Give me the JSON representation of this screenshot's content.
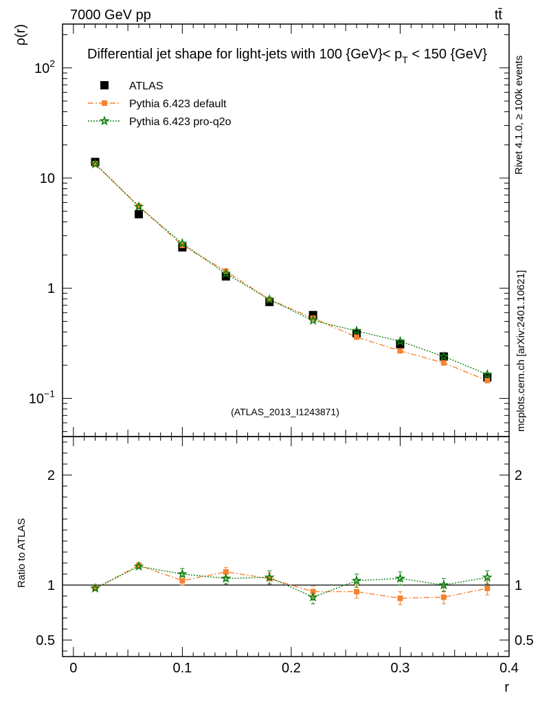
{
  "header": {
    "energy_label": "7000 GeV pp",
    "process_label": "tt̄",
    "plot_title": "Differential jet shape for light-jets with 100 {GeV}< p_T < 150 {GeV}",
    "title_prefix": "Differential jet shape for light-jets with 100 {GeV}< p",
    "title_subscript": "T",
    "title_suffix": " < 150 {GeV}"
  },
  "side_labels": {
    "rivet": "Rivet 4.1.0, ≥ 100k events",
    "mcplots": "mcplots.cern.ch [arXiv:2401.10621]"
  },
  "analysis_label": "(ATLAS_2013_I1243871)",
  "colors": {
    "atlas": "#000000",
    "pythia_default": "#f58231",
    "pythia_proq2o": "#0a7d0a"
  },
  "chart_data": [
    {
      "type": "scatter",
      "panel": "main",
      "ylabel": "ρ(r)",
      "yscale": "log",
      "ylim": [
        0.045,
        250
      ],
      "xlim": [
        -0.01,
        0.4
      ],
      "y_ticks": [
        {
          "value": 0.1,
          "base": "10",
          "exp": "−1"
        },
        {
          "value": 1,
          "label": "1"
        },
        {
          "value": 10,
          "label": "10"
        },
        {
          "value": 100,
          "base": "10",
          "exp": "2"
        }
      ],
      "x": [
        0.02,
        0.06,
        0.1,
        0.14,
        0.18,
        0.22,
        0.26,
        0.3,
        0.34,
        0.38
      ],
      "series": [
        {
          "name": "ATLAS",
          "key": "atlas",
          "style": "square",
          "values": [
            14.0,
            4.7,
            2.35,
            1.28,
            0.75,
            0.57,
            0.39,
            0.31,
            0.24,
            0.155
          ]
        },
        {
          "name": "Pythia 6.423 default",
          "key": "pythia_default",
          "style": "dashdot",
          "values": [
            13.5,
            5.55,
            2.45,
            1.43,
            0.79,
            0.535,
            0.36,
            0.27,
            0.21,
            0.145
          ]
        },
        {
          "name": "Pythia 6.423 pro-q2o",
          "key": "pythia_proq2o",
          "style": "dotted",
          "values": [
            13.4,
            5.5,
            2.55,
            1.36,
            0.79,
            0.51,
            0.41,
            0.33,
            0.24,
            0.165
          ]
        }
      ]
    },
    {
      "type": "scatter",
      "panel": "ratio",
      "ylabel": "Ratio to ATLAS",
      "xlabel": "r",
      "ylim": [
        0.35,
        2.35
      ],
      "xlim": [
        -0.01,
        0.4
      ],
      "y_ticks": [
        {
          "value": 0.5,
          "label": "0.5"
        },
        {
          "value": 1,
          "label": "1"
        },
        {
          "value": 2,
          "label": "2"
        }
      ],
      "x_ticks": [
        {
          "value": 0,
          "label": "0"
        },
        {
          "value": 0.1,
          "label": "0.1"
        },
        {
          "value": 0.2,
          "label": "0.2"
        },
        {
          "value": 0.3,
          "label": "0.3"
        },
        {
          "value": 0.4,
          "label": "0.4"
        }
      ],
      "x": [
        0.02,
        0.06,
        0.1,
        0.14,
        0.18,
        0.22,
        0.26,
        0.3,
        0.34,
        0.38
      ],
      "series": [
        {
          "name": "Pythia 6.423 default",
          "key": "pythia_default",
          "style": "dashdot",
          "values": [
            0.97,
            1.18,
            1.04,
            1.12,
            1.06,
            0.94,
            0.94,
            0.88,
            0.89,
            0.97
          ],
          "errors": [
            0.02,
            0.02,
            0.04,
            0.04,
            0.05,
            0.05,
            0.06,
            0.06,
            0.06,
            0.06
          ]
        },
        {
          "name": "Pythia 6.423 pro-q2o",
          "key": "pythia_proq2o",
          "style": "dotted",
          "values": [
            0.97,
            1.17,
            1.1,
            1.06,
            1.07,
            0.89,
            1.04,
            1.06,
            1.0,
            1.07
          ],
          "errors": [
            0.02,
            0.02,
            0.05,
            0.05,
            0.06,
            0.06,
            0.06,
            0.06,
            0.06,
            0.06
          ]
        }
      ]
    }
  ]
}
